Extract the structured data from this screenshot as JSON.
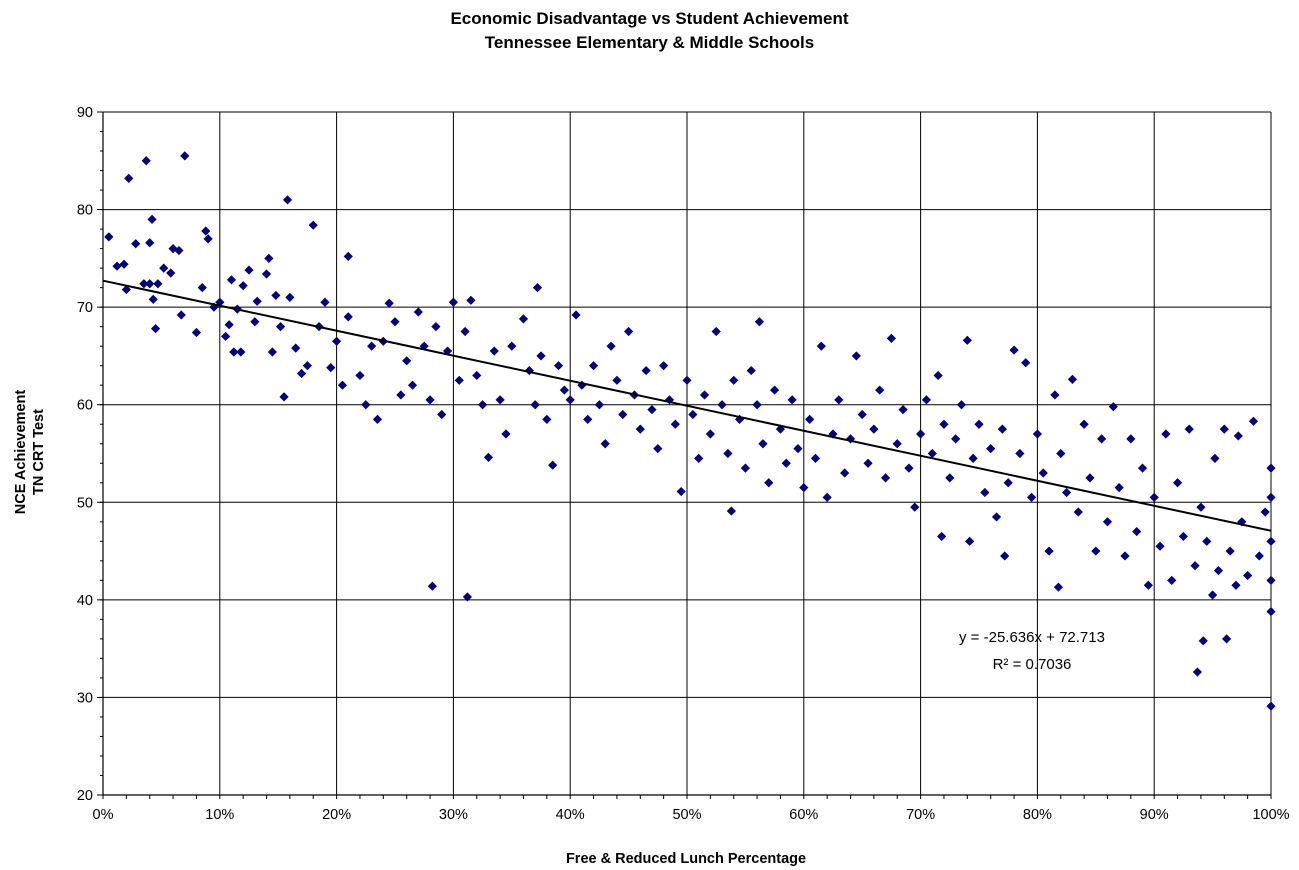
{
  "chart_data": {
    "type": "scatter",
    "title": "Economic Disadvantage vs Student Achievement",
    "subtitle": "Tennessee Elementary & Middle Schools",
    "xlabel": "Free & Reduced Lunch Percentage",
    "ylabel_line1": "NCE Achievement",
    "ylabel_line2": "TN CRT Test",
    "xlim": [
      0,
      1
    ],
    "ylim": [
      20,
      90
    ],
    "x_ticks": [
      "0%",
      "10%",
      "20%",
      "30%",
      "40%",
      "50%",
      "60%",
      "70%",
      "80%",
      "90%",
      "100%"
    ],
    "y_ticks": [
      "20",
      "30",
      "40",
      "50",
      "60",
      "70",
      "80",
      "90"
    ],
    "grid": true,
    "marker_color": "#000080",
    "trendline": {
      "slope": -25.636,
      "intercept": 72.713,
      "color": "#000000"
    },
    "annotation_equation": "y = -25.636x + 72.713",
    "annotation_r2": "R² = 0.7036",
    "r_squared": 0.7036,
    "points": [
      [
        0.005,
        77.2
      ],
      [
        0.012,
        74.2
      ],
      [
        0.018,
        74.4
      ],
      [
        0.02,
        71.8
      ],
      [
        0.022,
        83.2
      ],
      [
        0.028,
        76.5
      ],
      [
        0.035,
        72.4
      ],
      [
        0.037,
        85.0
      ],
      [
        0.04,
        76.6
      ],
      [
        0.04,
        72.4
      ],
      [
        0.042,
        79.0
      ],
      [
        0.043,
        70.8
      ],
      [
        0.045,
        67.8
      ],
      [
        0.047,
        72.4
      ],
      [
        0.052,
        74.0
      ],
      [
        0.058,
        73.5
      ],
      [
        0.06,
        76.0
      ],
      [
        0.065,
        75.8
      ],
      [
        0.067,
        69.2
      ],
      [
        0.07,
        85.5
      ],
      [
        0.08,
        67.4
      ],
      [
        0.085,
        72.0
      ],
      [
        0.088,
        77.8
      ],
      [
        0.09,
        77.0
      ],
      [
        0.095,
        70.0
      ],
      [
        0.1,
        70.5
      ],
      [
        0.105,
        67.0
      ],
      [
        0.108,
        68.2
      ],
      [
        0.11,
        72.8
      ],
      [
        0.112,
        65.4
      ],
      [
        0.115,
        69.8
      ],
      [
        0.118,
        65.4
      ],
      [
        0.12,
        72.2
      ],
      [
        0.125,
        73.8
      ],
      [
        0.13,
        68.5
      ],
      [
        0.132,
        70.6
      ],
      [
        0.14,
        73.4
      ],
      [
        0.142,
        75.0
      ],
      [
        0.145,
        65.4
      ],
      [
        0.148,
        71.2
      ],
      [
        0.152,
        68.0
      ],
      [
        0.155,
        60.8
      ],
      [
        0.158,
        81.0
      ],
      [
        0.16,
        71.0
      ],
      [
        0.165,
        65.8
      ],
      [
        0.17,
        63.2
      ],
      [
        0.175,
        64.0
      ],
      [
        0.18,
        78.4
      ],
      [
        0.185,
        68.0
      ],
      [
        0.19,
        70.5
      ],
      [
        0.195,
        63.8
      ],
      [
        0.2,
        66.5
      ],
      [
        0.205,
        62.0
      ],
      [
        0.21,
        75.2
      ],
      [
        0.21,
        69.0
      ],
      [
        0.22,
        63.0
      ],
      [
        0.225,
        60.0
      ],
      [
        0.23,
        66.0
      ],
      [
        0.235,
        58.5
      ],
      [
        0.24,
        66.5
      ],
      [
        0.245,
        70.4
      ],
      [
        0.25,
        68.5
      ],
      [
        0.255,
        61.0
      ],
      [
        0.26,
        64.5
      ],
      [
        0.265,
        62.0
      ],
      [
        0.27,
        69.5
      ],
      [
        0.275,
        66.0
      ],
      [
        0.28,
        60.5
      ],
      [
        0.282,
        41.4
      ],
      [
        0.285,
        68.0
      ],
      [
        0.29,
        59.0
      ],
      [
        0.295,
        65.5
      ],
      [
        0.3,
        70.5
      ],
      [
        0.305,
        62.5
      ],
      [
        0.31,
        67.5
      ],
      [
        0.312,
        40.3
      ],
      [
        0.315,
        70.7
      ],
      [
        0.32,
        63.0
      ],
      [
        0.325,
        60.0
      ],
      [
        0.33,
        54.6
      ],
      [
        0.335,
        65.5
      ],
      [
        0.34,
        60.5
      ],
      [
        0.345,
        57.0
      ],
      [
        0.35,
        66.0
      ],
      [
        0.36,
        68.8
      ],
      [
        0.365,
        63.5
      ],
      [
        0.37,
        60.0
      ],
      [
        0.372,
        72.0
      ],
      [
        0.375,
        65.0
      ],
      [
        0.38,
        58.5
      ],
      [
        0.385,
        53.8
      ],
      [
        0.39,
        64.0
      ],
      [
        0.395,
        61.5
      ],
      [
        0.4,
        60.5
      ],
      [
        0.405,
        69.2
      ],
      [
        0.41,
        62.0
      ],
      [
        0.415,
        58.5
      ],
      [
        0.42,
        64.0
      ],
      [
        0.425,
        60.0
      ],
      [
        0.43,
        56.0
      ],
      [
        0.435,
        66.0
      ],
      [
        0.44,
        62.5
      ],
      [
        0.445,
        59.0
      ],
      [
        0.45,
        67.5
      ],
      [
        0.455,
        61.0
      ],
      [
        0.46,
        57.5
      ],
      [
        0.465,
        63.5
      ],
      [
        0.47,
        59.5
      ],
      [
        0.475,
        55.5
      ],
      [
        0.48,
        64.0
      ],
      [
        0.485,
        60.5
      ],
      [
        0.49,
        58.0
      ],
      [
        0.495,
        51.1
      ],
      [
        0.5,
        62.5
      ],
      [
        0.505,
        59.0
      ],
      [
        0.51,
        54.5
      ],
      [
        0.515,
        61.0
      ],
      [
        0.52,
        57.0
      ],
      [
        0.525,
        67.5
      ],
      [
        0.53,
        60.0
      ],
      [
        0.535,
        55.0
      ],
      [
        0.538,
        49.1
      ],
      [
        0.54,
        62.5
      ],
      [
        0.545,
        58.5
      ],
      [
        0.55,
        53.5
      ],
      [
        0.555,
        63.5
      ],
      [
        0.56,
        60.0
      ],
      [
        0.562,
        68.5
      ],
      [
        0.565,
        56.0
      ],
      [
        0.57,
        52.0
      ],
      [
        0.575,
        61.5
      ],
      [
        0.58,
        57.5
      ],
      [
        0.585,
        54.0
      ],
      [
        0.59,
        60.5
      ],
      [
        0.595,
        55.5
      ],
      [
        0.6,
        51.5
      ],
      [
        0.605,
        58.5
      ],
      [
        0.61,
        54.5
      ],
      [
        0.615,
        66.0
      ],
      [
        0.62,
        50.5
      ],
      [
        0.625,
        57.0
      ],
      [
        0.63,
        60.5
      ],
      [
        0.635,
        53.0
      ],
      [
        0.64,
        56.5
      ],
      [
        0.645,
        65.0
      ],
      [
        0.65,
        59.0
      ],
      [
        0.655,
        54.0
      ],
      [
        0.66,
        57.5
      ],
      [
        0.665,
        61.5
      ],
      [
        0.67,
        52.5
      ],
      [
        0.675,
        66.8
      ],
      [
        0.68,
        56.0
      ],
      [
        0.685,
        59.5
      ],
      [
        0.69,
        53.5
      ],
      [
        0.695,
        49.5
      ],
      [
        0.7,
        57.0
      ],
      [
        0.705,
        60.5
      ],
      [
        0.71,
        55.0
      ],
      [
        0.715,
        63.0
      ],
      [
        0.718,
        46.5
      ],
      [
        0.72,
        58.0
      ],
      [
        0.725,
        52.5
      ],
      [
        0.73,
        56.5
      ],
      [
        0.735,
        60.0
      ],
      [
        0.74,
        66.6
      ],
      [
        0.742,
        46.0
      ],
      [
        0.745,
        54.5
      ],
      [
        0.75,
        58.0
      ],
      [
        0.755,
        51.0
      ],
      [
        0.76,
        55.5
      ],
      [
        0.765,
        48.5
      ],
      [
        0.77,
        57.5
      ],
      [
        0.772,
        44.5
      ],
      [
        0.775,
        52.0
      ],
      [
        0.78,
        65.6
      ],
      [
        0.785,
        55.0
      ],
      [
        0.79,
        64.3
      ],
      [
        0.795,
        50.5
      ],
      [
        0.8,
        57.0
      ],
      [
        0.805,
        53.0
      ],
      [
        0.81,
        45.0
      ],
      [
        0.815,
        61.0
      ],
      [
        0.818,
        41.3
      ],
      [
        0.82,
        55.0
      ],
      [
        0.825,
        51.0
      ],
      [
        0.83,
        62.6
      ],
      [
        0.835,
        49.0
      ],
      [
        0.84,
        58.0
      ],
      [
        0.845,
        52.5
      ],
      [
        0.85,
        45.0
      ],
      [
        0.855,
        56.5
      ],
      [
        0.86,
        48.0
      ],
      [
        0.865,
        59.8
      ],
      [
        0.87,
        51.5
      ],
      [
        0.875,
        44.5
      ],
      [
        0.88,
        56.5
      ],
      [
        0.885,
        47.0
      ],
      [
        0.89,
        53.5
      ],
      [
        0.895,
        41.5
      ],
      [
        0.9,
        50.5
      ],
      [
        0.905,
        45.5
      ],
      [
        0.91,
        57.0
      ],
      [
        0.915,
        42.0
      ],
      [
        0.92,
        52.0
      ],
      [
        0.925,
        46.5
      ],
      [
        0.93,
        57.5
      ],
      [
        0.935,
        43.5
      ],
      [
        0.937,
        32.6
      ],
      [
        0.94,
        49.5
      ],
      [
        0.942,
        35.8
      ],
      [
        0.945,
        46.0
      ],
      [
        0.95,
        40.5
      ],
      [
        0.952,
        54.5
      ],
      [
        0.955,
        43.0
      ],
      [
        0.96,
        57.5
      ],
      [
        0.962,
        36.0
      ],
      [
        0.965,
        45.0
      ],
      [
        0.97,
        41.5
      ],
      [
        0.972,
        56.8
      ],
      [
        0.975,
        48.0
      ],
      [
        0.98,
        42.5
      ],
      [
        0.985,
        58.3
      ],
      [
        0.99,
        44.5
      ],
      [
        0.995,
        49.0
      ],
      [
        1.0,
        53.5
      ],
      [
        1.0,
        46.0
      ],
      [
        1.0,
        42.0
      ],
      [
        1.0,
        38.8
      ],
      [
        1.0,
        29.1
      ],
      [
        1.0,
        50.5
      ]
    ]
  }
}
